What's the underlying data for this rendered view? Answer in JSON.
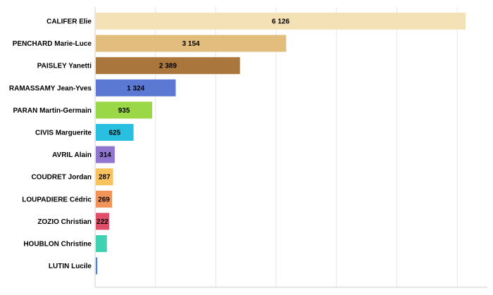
{
  "chart_data": {
    "type": "bar",
    "orientation": "horizontal",
    "title": "",
    "xlabel": "",
    "ylabel": "",
    "xlim": [
      0,
      6500
    ],
    "grid": true,
    "categories": [
      "CALIFER Elie",
      "PENCHARD Marie-Luce",
      "PAISLEY Yanetti",
      "RAMASSAMY Jean-Yves",
      "PARAN Martin-Germain",
      "CIVIS Marguerite",
      "AVRIL Alain",
      "COUDRET Jordan",
      "LOUPADIERE Cédric",
      "ZOZIO Christian",
      "HOUBLON Christine",
      "LUTIN Lucile"
    ],
    "values": [
      6126,
      3154,
      2389,
      1324,
      935,
      625,
      314,
      287,
      269,
      222,
      184,
      26
    ],
    "value_labels": [
      "6 126",
      "3 154",
      "2 389",
      "1 324",
      "935",
      "625",
      "314",
      "287",
      "269",
      "222",
      "",
      ""
    ],
    "colors": [
      "#f5e1b6",
      "#e3bd7d",
      "#a9763d",
      "#5b78d3",
      "#9bd848",
      "#29bfe0",
      "#9176cf",
      "#f8c25f",
      "#f2935a",
      "#e04f67",
      "#3fd2b2",
      "#4b83d0"
    ]
  }
}
